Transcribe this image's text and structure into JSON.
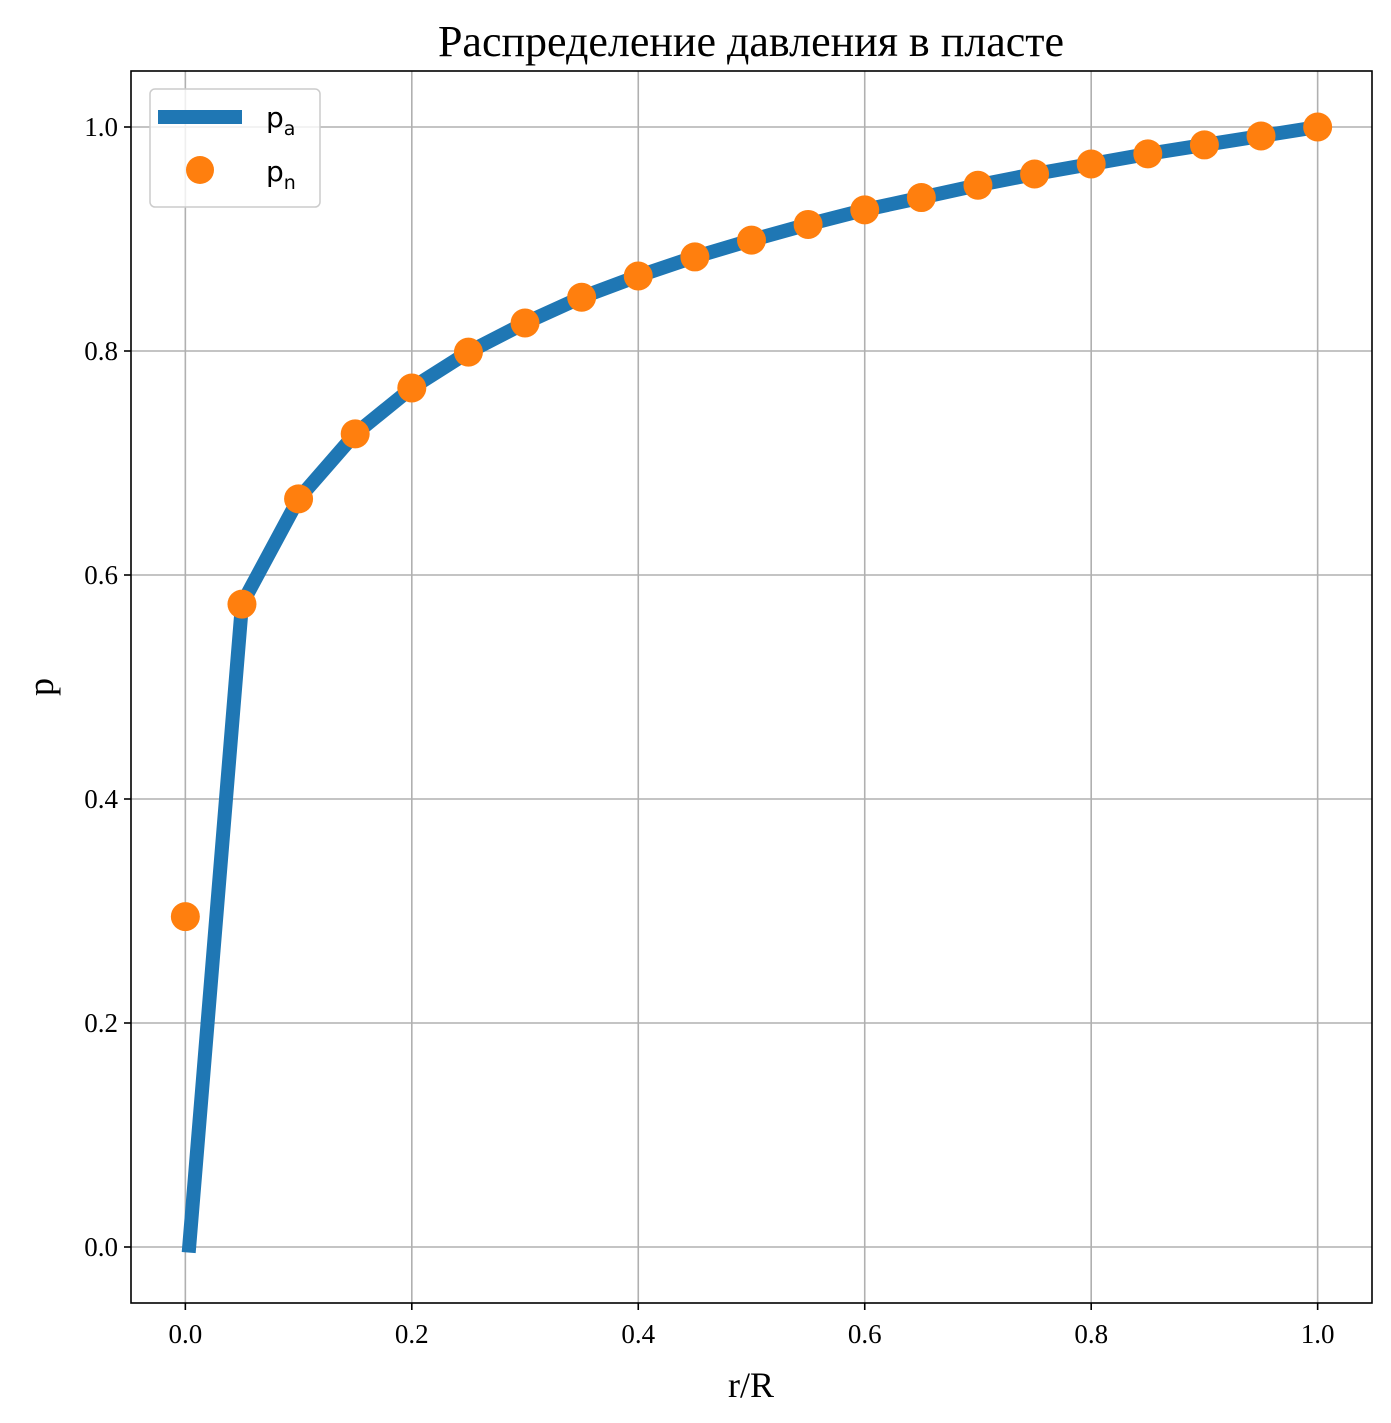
{
  "chart_data": {
    "type": "line",
    "title": "Распределение давления в пласте",
    "xlabel": "r/R",
    "ylabel": "p",
    "xlim": [
      -0.048,
      1.048
    ],
    "ylim": [
      -0.05,
      1.05
    ],
    "xticks": [
      "0.0",
      "0.2",
      "0.4",
      "0.6",
      "0.8",
      "1.0"
    ],
    "yticks": [
      "0.0",
      "0.2",
      "0.4",
      "0.6",
      "0.8",
      "1.0"
    ],
    "grid": true,
    "legend_position": "top-left",
    "series": [
      {
        "name": "p",
        "name_subscript": "a",
        "style": "line",
        "color": "#1f77b4",
        "x": [
          0.003,
          0.05,
          0.1,
          0.15,
          0.2,
          0.25,
          0.3,
          0.35,
          0.4,
          0.45,
          0.5,
          0.55,
          0.6,
          0.65,
          0.7,
          0.75,
          0.8,
          0.85,
          0.9,
          0.95,
          1.0
        ],
        "y": [
          -0.005,
          0.574,
          0.668,
          0.726,
          0.767,
          0.799,
          0.825,
          0.848,
          0.867,
          0.884,
          0.899,
          0.913,
          0.926,
          0.937,
          0.948,
          0.958,
          0.967,
          0.976,
          0.984,
          0.992,
          1.0
        ]
      },
      {
        "name": "p",
        "name_subscript": "n",
        "style": "markers",
        "color": "#ff7f0e",
        "x": [
          0.0,
          0.05,
          0.1,
          0.15,
          0.2,
          0.25,
          0.3,
          0.35,
          0.4,
          0.45,
          0.5,
          0.55,
          0.6,
          0.65,
          0.7,
          0.75,
          0.8,
          0.85,
          0.9,
          0.95,
          1.0
        ],
        "y": [
          0.295,
          0.574,
          0.668,
          0.726,
          0.767,
          0.799,
          0.825,
          0.848,
          0.867,
          0.884,
          0.899,
          0.913,
          0.926,
          0.937,
          0.948,
          0.958,
          0.967,
          0.976,
          0.984,
          0.992,
          1.0
        ]
      }
    ]
  }
}
